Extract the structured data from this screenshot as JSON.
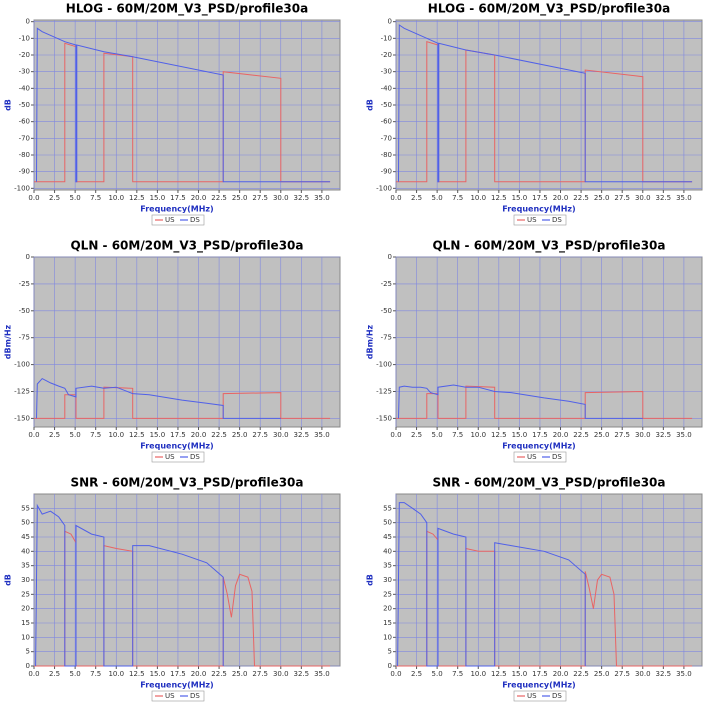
{
  "chart_data": [
    {
      "type": "line",
      "title": "HLOG - 60M/20M_V3_PSD/profile30a",
      "x_label": "Frequency(MHz)",
      "y_label": "dB",
      "xlim": [
        0,
        37.2
      ],
      "ylim": [
        -101,
        1
      ],
      "xticks": [
        {
          "value": 0,
          "label": "0.0"
        },
        {
          "value": 2.5,
          "label": "2.5"
        },
        {
          "value": 5,
          "label": "5.0"
        },
        {
          "value": 7.5,
          "label": "7.5"
        },
        {
          "value": 10,
          "label": "10.0"
        },
        {
          "value": 12.5,
          "label": "12.5"
        },
        {
          "value": 15,
          "label": "15.0"
        },
        {
          "value": 17.5,
          "label": "17.5"
        },
        {
          "value": 20,
          "label": "20.0"
        },
        {
          "value": 22.5,
          "label": "22.5"
        },
        {
          "value": 25,
          "label": "25.0"
        },
        {
          "value": 27.5,
          "label": "27.5"
        },
        {
          "value": 30,
          "label": "30.0"
        },
        {
          "value": 32.5,
          "label": "32.5"
        },
        {
          "value": 35,
          "label": "35.0"
        }
      ],
      "yticks": [
        0,
        -10,
        -20,
        -30,
        -40,
        -50,
        -60,
        -70,
        -80,
        -90,
        -100
      ],
      "grid": true,
      "series": [
        {
          "name": "US",
          "color": "#e86464",
          "x": [
            0,
            3.75,
            3.75,
            5.1,
            5.1,
            8.5,
            8.5,
            12,
            12,
            23,
            23,
            30,
            30,
            36
          ],
          "values": [
            -96,
            -96,
            -13,
            -15,
            -96,
            -96,
            -19,
            -21,
            -96,
            -96,
            -30,
            -34,
            -96,
            -96
          ]
        },
        {
          "name": "DS",
          "color": "#5060e8",
          "x": [
            0.3,
            0.4,
            1,
            3.75,
            5.1,
            5.1,
            5.2,
            5.2,
            8.5,
            12,
            23,
            23,
            36
          ],
          "values": [
            -96,
            -4,
            -6,
            -12,
            -14,
            -96,
            -96,
            -14,
            -18,
            -21,
            -32,
            -96,
            -96
          ]
        }
      ]
    },
    {
      "type": "line",
      "title": "HLOG - 60M/20M_V3_PSD/profile30a",
      "x_label": "Frequency(MHz)",
      "y_label": "dB",
      "xlim": [
        0,
        37.2
      ],
      "ylim": [
        -101,
        1
      ],
      "xticks": [
        {
          "value": 0,
          "label": "0.0"
        },
        {
          "value": 2.5,
          "label": "2.5"
        },
        {
          "value": 5,
          "label": "5.0"
        },
        {
          "value": 7.5,
          "label": "7.5"
        },
        {
          "value": 10,
          "label": "10.0"
        },
        {
          "value": 12.5,
          "label": "12.5"
        },
        {
          "value": 15,
          "label": "15.0"
        },
        {
          "value": 17.5,
          "label": "17.5"
        },
        {
          "value": 20,
          "label": "20.0"
        },
        {
          "value": 22.5,
          "label": "22.5"
        },
        {
          "value": 25,
          "label": "25.0"
        },
        {
          "value": 27.5,
          "label": "27.5"
        },
        {
          "value": 30,
          "label": "30.0"
        },
        {
          "value": 32.5,
          "label": "32.5"
        },
        {
          "value": 35,
          "label": "35.0"
        }
      ],
      "yticks": [
        0,
        -10,
        -20,
        -30,
        -40,
        -50,
        -60,
        -70,
        -80,
        -90,
        -100
      ],
      "grid": true,
      "series": [
        {
          "name": "US",
          "color": "#e86464",
          "x": [
            0,
            3.75,
            3.75,
            5.1,
            5.1,
            8.5,
            8.5,
            12,
            12,
            23,
            23,
            30,
            30,
            36
          ],
          "values": [
            -96,
            -96,
            -12,
            -14,
            -96,
            -96,
            -17,
            -20,
            -96,
            -96,
            -29,
            -33,
            -96,
            -96
          ]
        },
        {
          "name": "DS",
          "color": "#5060e8",
          "x": [
            0.3,
            0.4,
            1,
            3.75,
            5.1,
            5.1,
            5.2,
            5.2,
            8.5,
            12,
            23,
            23,
            36
          ],
          "values": [
            -96,
            -2,
            -4,
            -10,
            -13,
            -96,
            -96,
            -13,
            -17,
            -20,
            -31,
            -96,
            -96
          ]
        }
      ]
    },
    {
      "type": "line",
      "title": "QLN - 60M/20M_V3_PSD/profile30a",
      "x_label": "Frequency(MHz)",
      "y_label": "dBm/Hz",
      "xlim": [
        0,
        37.2
      ],
      "ylim": [
        -158,
        0
      ],
      "xticks": [
        {
          "value": 0,
          "label": "0.0"
        },
        {
          "value": 2.5,
          "label": "2.5"
        },
        {
          "value": 5,
          "label": "5.0"
        },
        {
          "value": 7.5,
          "label": "7.5"
        },
        {
          "value": 10,
          "label": "10.0"
        },
        {
          "value": 12.5,
          "label": "12.5"
        },
        {
          "value": 15,
          "label": "15.0"
        },
        {
          "value": 17.5,
          "label": "17.5"
        },
        {
          "value": 20,
          "label": "20.0"
        },
        {
          "value": 22.5,
          "label": "22.5"
        },
        {
          "value": 25,
          "label": "25.0"
        },
        {
          "value": 27.5,
          "label": "27.5"
        },
        {
          "value": 30,
          "label": "30.0"
        },
        {
          "value": 32.5,
          "label": "32.5"
        },
        {
          "value": 35,
          "label": "35.0"
        }
      ],
      "yticks": [
        0,
        -25,
        -50,
        -75,
        -100,
        -125,
        -150
      ],
      "grid": true,
      "series": [
        {
          "name": "US",
          "color": "#e86464",
          "x": [
            0,
            3.75,
            3.75,
            5.1,
            5.1,
            8.5,
            8.5,
            12,
            12,
            23,
            23,
            30,
            30,
            36
          ],
          "values": [
            -150,
            -150,
            -128,
            -128,
            -150,
            -150,
            -121,
            -122,
            -150,
            -150,
            -127,
            -126,
            -150,
            -150
          ]
        },
        {
          "name": "DS",
          "color": "#5060e8",
          "x": [
            0.3,
            0.4,
            1,
            2,
            3,
            3.75,
            4.2,
            5.1,
            5.1,
            7,
            8.5,
            10,
            12,
            14,
            18,
            21,
            23,
            23,
            30
          ],
          "values": [
            -150,
            -118,
            -113,
            -117,
            -120,
            -122,
            -128,
            -130,
            -122,
            -120,
            -122,
            -121,
            -127,
            -128,
            -133,
            -136,
            -138,
            -150,
            -150
          ]
        }
      ]
    },
    {
      "type": "line",
      "title": "QLN - 60M/20M_V3_PSD/profile30a",
      "x_label": "Frequency(MHz)",
      "y_label": "dBm/Hz",
      "xlim": [
        0,
        37.2
      ],
      "ylim": [
        -158,
        0
      ],
      "xticks": [
        {
          "value": 0,
          "label": "0.0"
        },
        {
          "value": 2.5,
          "label": "2.5"
        },
        {
          "value": 5,
          "label": "5.0"
        },
        {
          "value": 7.5,
          "label": "7.5"
        },
        {
          "value": 10,
          "label": "10.0"
        },
        {
          "value": 12.5,
          "label": "12.5"
        },
        {
          "value": 15,
          "label": "15.0"
        },
        {
          "value": 17.5,
          "label": "17.5"
        },
        {
          "value": 20,
          "label": "20.0"
        },
        {
          "value": 22.5,
          "label": "22.5"
        },
        {
          "value": 25,
          "label": "25.0"
        },
        {
          "value": 27.5,
          "label": "27.5"
        },
        {
          "value": 30,
          "label": "30.0"
        },
        {
          "value": 32.5,
          "label": "32.5"
        },
        {
          "value": 35,
          "label": "35.0"
        }
      ],
      "yticks": [
        0,
        -25,
        -50,
        -75,
        -100,
        -125,
        -150
      ],
      "grid": true,
      "series": [
        {
          "name": "US",
          "color": "#e86464",
          "x": [
            0,
            3.75,
            3.75,
            5.1,
            5.1,
            8.5,
            8.5,
            12,
            12,
            23,
            23,
            30,
            30,
            36
          ],
          "values": [
            -150,
            -150,
            -127,
            -127,
            -150,
            -150,
            -120,
            -121,
            -150,
            -150,
            -126,
            -125,
            -150,
            -150
          ]
        },
        {
          "name": "DS",
          "color": "#5060e8",
          "x": [
            0.3,
            0.4,
            1,
            2,
            3,
            3.75,
            4.2,
            5.1,
            5.1,
            7,
            8.5,
            10,
            12,
            14,
            18,
            21,
            23,
            23,
            30
          ],
          "values": [
            -150,
            -121,
            -120,
            -121,
            -121,
            -122,
            -126,
            -128,
            -121,
            -119,
            -121,
            -121,
            -125,
            -126,
            -131,
            -134,
            -137,
            -150,
            -150
          ]
        }
      ]
    },
    {
      "type": "line",
      "title": "SNR - 60M/20M_V3_PSD/profile30a",
      "x_label": "Frequency(MHz)",
      "y_label": "dB",
      "xlim": [
        0,
        37.2
      ],
      "ylim": [
        0,
        60
      ],
      "xticks": [
        {
          "value": 0,
          "label": "0.0"
        },
        {
          "value": 2.5,
          "label": "2.5"
        },
        {
          "value": 5,
          "label": "5.0"
        },
        {
          "value": 7.5,
          "label": "7.5"
        },
        {
          "value": 10,
          "label": "10.0"
        },
        {
          "value": 12.5,
          "label": "12.5"
        },
        {
          "value": 15,
          "label": "15.0"
        },
        {
          "value": 17.5,
          "label": "17.5"
        },
        {
          "value": 20,
          "label": "20.0"
        },
        {
          "value": 22.5,
          "label": "22.5"
        },
        {
          "value": 25,
          "label": "25.0"
        },
        {
          "value": 27.5,
          "label": "27.5"
        },
        {
          "value": 30,
          "label": "30.0"
        },
        {
          "value": 32.5,
          "label": "32.5"
        },
        {
          "value": 35,
          "label": "35.0"
        }
      ],
      "yticks": [
        0,
        5,
        10,
        15,
        20,
        25,
        30,
        35,
        40,
        45,
        50,
        55
      ],
      "grid": true,
      "series": [
        {
          "name": "US",
          "color": "#e86464",
          "x": [
            0,
            3.75,
            3.75,
            4.5,
            5.1,
            5.1,
            8.5,
            8.5,
            10,
            12,
            12,
            23,
            23,
            23.5,
            24,
            24.5,
            25,
            26,
            26.5,
            26.8,
            36
          ],
          "values": [
            0,
            0,
            47,
            46,
            43,
            0,
            0,
            42,
            41,
            40,
            0,
            0,
            31,
            25,
            17,
            28,
            32,
            31,
            26,
            0,
            0
          ]
        },
        {
          "name": "DS",
          "color": "#5060e8",
          "x": [
            0.2,
            0.4,
            1,
            2,
            3,
            3.75,
            3.75,
            5.1,
            5.1,
            7,
            8.5,
            8.5,
            12,
            12,
            14,
            18,
            21,
            23,
            23
          ],
          "values": [
            0,
            56,
            53,
            54,
            52,
            49,
            0,
            0,
            49,
            46,
            45,
            0,
            0,
            42,
            42,
            39,
            36,
            31,
            0
          ]
        }
      ]
    },
    {
      "type": "line",
      "title": "SNR - 60M/20M_V3_PSD/profile30a",
      "x_label": "Frequency(MHz)",
      "y_label": "dB",
      "xlim": [
        0,
        37.2
      ],
      "ylim": [
        0,
        60
      ],
      "xticks": [
        {
          "value": 0,
          "label": "0.0"
        },
        {
          "value": 2.5,
          "label": "2.5"
        },
        {
          "value": 5,
          "label": "5.0"
        },
        {
          "value": 7.5,
          "label": "7.5"
        },
        {
          "value": 10,
          "label": "10.0"
        },
        {
          "value": 12.5,
          "label": "12.5"
        },
        {
          "value": 15,
          "label": "15.0"
        },
        {
          "value": 17.5,
          "label": "17.5"
        },
        {
          "value": 20,
          "label": "20.0"
        },
        {
          "value": 22.5,
          "label": "22.5"
        },
        {
          "value": 25,
          "label": "25.0"
        },
        {
          "value": 27.5,
          "label": "27.5"
        },
        {
          "value": 30,
          "label": "30.0"
        },
        {
          "value": 32.5,
          "label": "32.5"
        },
        {
          "value": 35,
          "label": "35.0"
        }
      ],
      "yticks": [
        0,
        5,
        10,
        15,
        20,
        25,
        30,
        35,
        40,
        45,
        50,
        55
      ],
      "grid": true,
      "series": [
        {
          "name": "US",
          "color": "#e86464",
          "x": [
            0,
            3.75,
            3.75,
            4.5,
            5.1,
            5.1,
            8.5,
            8.5,
            10,
            12,
            12,
            23,
            23,
            23.5,
            24,
            24.5,
            25,
            26,
            26.5,
            26.8,
            36
          ],
          "values": [
            0,
            0,
            47,
            46,
            44,
            0,
            0,
            41,
            40,
            40,
            0,
            0,
            33,
            27,
            20,
            30,
            32,
            31,
            25,
            0,
            0
          ]
        },
        {
          "name": "DS",
          "color": "#5060e8",
          "x": [
            0.2,
            0.4,
            1,
            2,
            3,
            3.75,
            3.75,
            5.1,
            5.1,
            7,
            8.5,
            8.5,
            12,
            12,
            14,
            18,
            21,
            23,
            23
          ],
          "values": [
            0,
            57,
            57,
            55,
            53,
            50,
            0,
            0,
            48,
            46,
            45,
            0,
            0,
            43,
            42,
            40,
            37,
            32,
            0
          ]
        }
      ]
    }
  ]
}
